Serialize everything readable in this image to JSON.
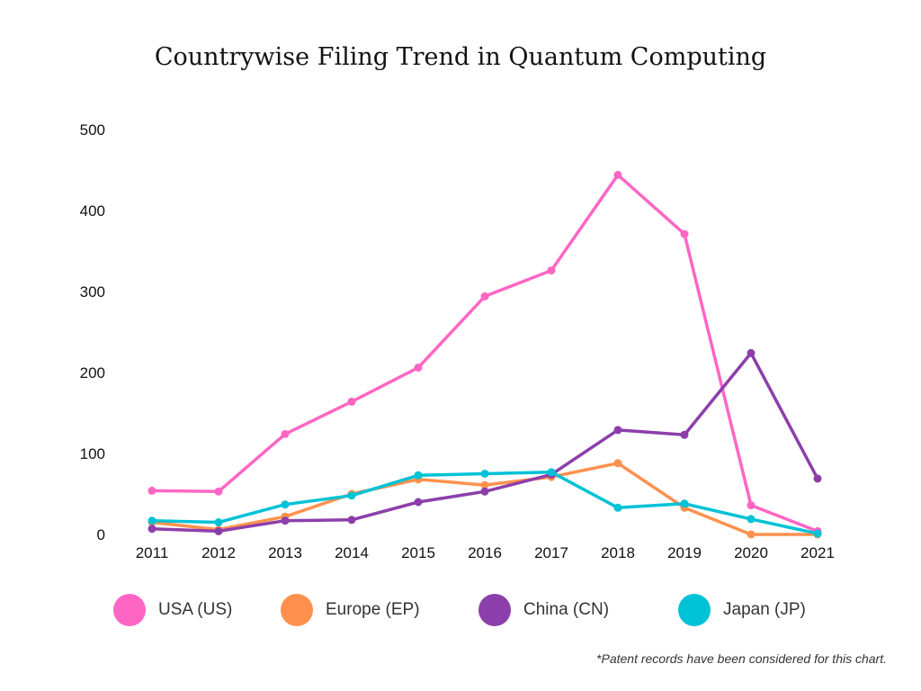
{
  "chart_data": {
    "type": "line",
    "title": "Countrywise Filing Trend in Quantum Computing",
    "xlabel": "",
    "ylabel": "",
    "x": [
      "2011",
      "2012",
      "2013",
      "2014",
      "2015",
      "2016",
      "2017",
      "2018",
      "2019",
      "2020",
      "2021"
    ],
    "yticks": [
      "0",
      "100",
      "200",
      "300",
      "400",
      "500"
    ],
    "ylim": [
      0,
      500
    ],
    "grid": false,
    "legend_position": "bottom",
    "series": [
      {
        "name": "USA (US)",
        "color": "#ff66c4",
        "values": [
          54,
          53,
          124,
          164,
          206,
          294,
          326,
          444,
          371,
          36,
          4
        ]
      },
      {
        "name": "Europe (EP)",
        "color": "#ff914d",
        "values": [
          15,
          6,
          22,
          50,
          68,
          61,
          71,
          88,
          33,
          0,
          0
        ]
      },
      {
        "name": "China (CN)",
        "color": "#8c3faa",
        "values": [
          7,
          4,
          17,
          18,
          40,
          53,
          74,
          129,
          123,
          224,
          69
        ]
      },
      {
        "name": "Japan (JP)",
        "color": "#00c2d6",
        "values": [
          17,
          15,
          37,
          48,
          73,
          75,
          77,
          33,
          38,
          19,
          1
        ]
      }
    ],
    "footnote": "*Patent records have been considered for this chart."
  }
}
